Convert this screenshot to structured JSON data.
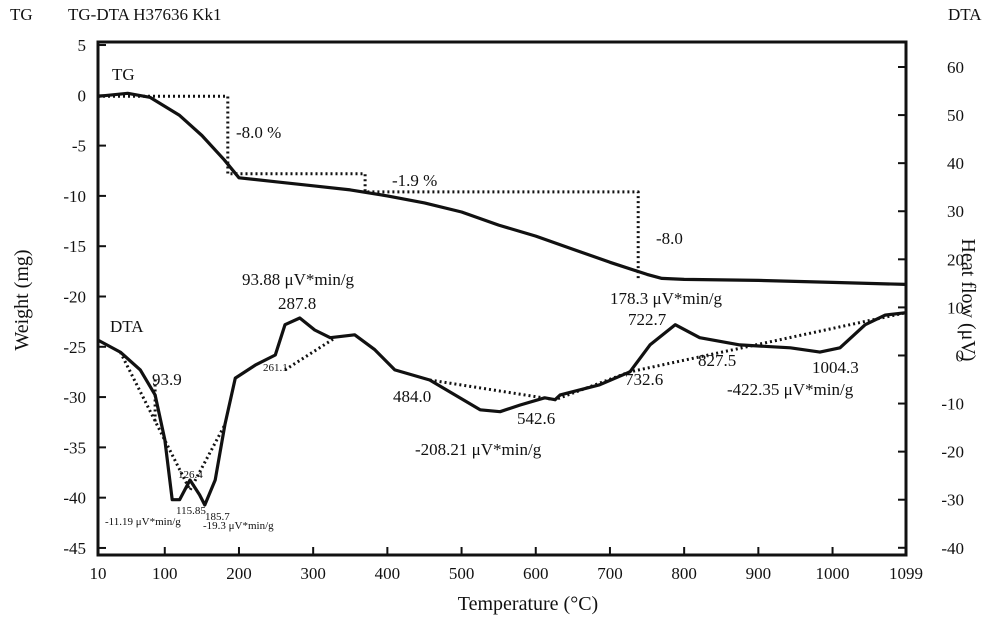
{
  "chart_data": {
    "type": "line",
    "title": "TG-DTA H37636 Kk1",
    "y_header": "TG",
    "y2_header": "DTA",
    "x_label": "Temperature (°C)",
    "y_label": "Weight (mg)",
    "y2_label": "Heat flow (μV)",
    "xlim": [
      10,
      1099
    ],
    "xticks": [
      10,
      100,
      200,
      300,
      400,
      500,
      600,
      700,
      800,
      900,
      1000,
      1099
    ],
    "ylim": [
      -45.7,
      5.3
    ],
    "yticks": [
      5,
      0,
      -5,
      -10,
      -15,
      -20,
      -25,
      -30,
      -35,
      -40,
      -45
    ],
    "y2lim": [
      -41.5,
      65.2
    ],
    "y2ticks": [
      60,
      50,
      40,
      30,
      20,
      10,
      0,
      -10,
      -20,
      -30,
      -40
    ],
    "series": [
      {
        "color": "#111111",
        "axis": "y",
        "x": [
          10,
          50,
          80,
          120,
          150,
          180,
          200,
          250,
          300,
          350,
          400,
          450,
          500,
          550,
          600,
          650,
          700,
          750,
          770,
          800,
          900,
          1000,
          1099
        ],
        "values": [
          -0.1,
          0.2,
          -0.2,
          -2.0,
          -4.0,
          -6.4,
          -8.2,
          -8.6,
          -9.0,
          -9.4,
          -10.0,
          -10.7,
          -11.6,
          -12.9,
          -14.0,
          -15.3,
          -16.6,
          -17.8,
          -18.2,
          -18.3,
          -18.4,
          -18.6,
          -18.8
        ]
      },
      {
        "color": "#111111",
        "axis": "y",
        "dash": true,
        "x": [
          10,
          185,
          185,
          370,
          370,
          738,
          738
        ],
        "values": [
          -0.1,
          -0.1,
          -7.8,
          -7.8,
          -9.6,
          -9.6,
          -18.2
        ]
      },
      {
        "color": "#111111",
        "axis": "y2",
        "x": [
          10,
          40,
          67,
          87,
          100,
          110,
          120,
          134,
          147,
          154,
          168,
          181,
          195,
          222,
          249,
          262,
          282,
          302,
          323,
          356,
          383,
          410,
          457,
          491,
          525,
          552,
          579,
          612,
          626,
          633,
          686,
          727,
          754,
          788,
          821,
          875,
          943,
          983,
          1010,
          1044,
          1071,
          1099
        ],
        "values": [
          3.2,
          0.7,
          -3.0,
          -8.2,
          -17.5,
          -30.0,
          -30.0,
          -25.9,
          -29.0,
          -31.1,
          -25.9,
          -14.4,
          -4.7,
          -2.0,
          0.1,
          6.4,
          7.8,
          5.3,
          3.7,
          4.3,
          1.2,
          -3.0,
          -5.1,
          -8.2,
          -11.3,
          -11.7,
          -10.3,
          -8.8,
          -9.2,
          -8.2,
          -6.1,
          -3.4,
          2.2,
          6.4,
          3.7,
          2.2,
          1.6,
          0.7,
          1.6,
          6.4,
          8.4,
          8.9
        ]
      },
      {
        "color": "#111111",
        "axis": "y2",
        "dash": true,
        "x": [
          40,
          134,
          181,
          null,
          262,
          330,
          null,
          457,
          626,
          727,
          1099,
          null,
          87,
          87
        ],
        "values": [
          0.7,
          -28.0,
          -14.4,
          null,
          -3.0,
          3.7,
          null,
          -5.1,
          -9.2,
          -3.4,
          8.9,
          null,
          -5.0,
          -14.0
        ]
      }
    ],
    "annotations": [
      "TG",
      "-8.0 %",
      "-1.9 %",
      "-8.0",
      "178.3 μV*min/g",
      "722.7",
      "827.5",
      "1004.3",
      "-422.35 μV*min/g",
      "732.6",
      "93.88 μV*min/g",
      "287.8",
      "261.1",
      "DTA",
      "93.9",
      "484.0",
      "542.6",
      "-208.21 μV*min/g",
      "126.4",
      "115.85",
      "-11.19 μV*min/g",
      "185.7",
      "-19.3 μV*min/g"
    ]
  }
}
